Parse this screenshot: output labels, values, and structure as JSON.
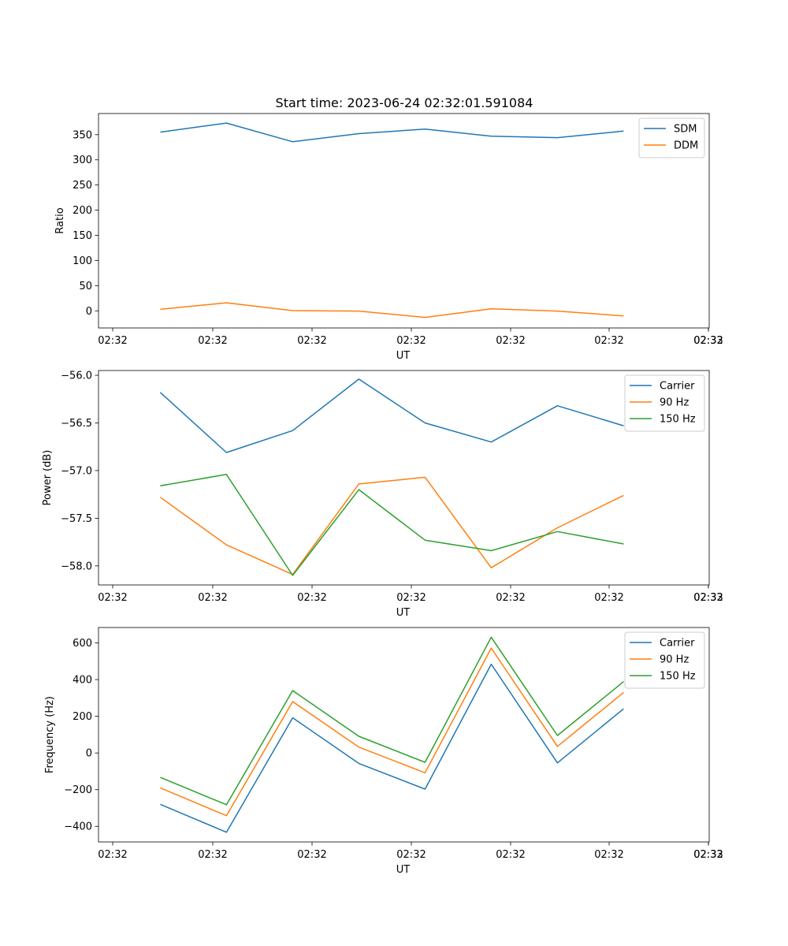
{
  "title": "Start time: 2023-06-24 02:32:01.591084",
  "colors": {
    "blue": "#1f77b4",
    "orange": "#ff7f0e",
    "green": "#2ca02c"
  },
  "chart_data": [
    {
      "type": "line",
      "title": "Start time: 2023-06-24 02:32:01.591084",
      "xlabel": "UT",
      "ylabel": "Ratio",
      "x": [
        "02:32:01.6",
        "02:32:02.6",
        "02:32:03.6",
        "02:32:04.6",
        "02:32:05.6",
        "02:32:06.6",
        "02:32:07.6",
        "02:32:08.6"
      ],
      "x_ticks": [
        "02:32",
        "02:32",
        "02:32",
        "02:32",
        "02:32",
        "02:32",
        "02:32",
        "02:33"
      ],
      "xlim": [
        "02:32:00.667",
        "02:32:09.893"
      ],
      "ylim": [
        -34,
        392
      ],
      "y_ticks": [
        0,
        50,
        100,
        150,
        200,
        250,
        300,
        350
      ],
      "legend_position": "top-right",
      "series": [
        {
          "name": "SDM",
          "color": "#1f77b4",
          "values": [
            355,
            373,
            336,
            352,
            361,
            347,
            344,
            357
          ]
        },
        {
          "name": "DDM",
          "color": "#ff7f0e",
          "values": [
            3,
            16,
            0.5,
            -0.5,
            -13,
            4,
            -0.5,
            -10
          ]
        }
      ]
    },
    {
      "type": "line",
      "xlabel": "UT",
      "ylabel": "Power (dB)",
      "x": [
        "02:32:01.6",
        "02:32:02.6",
        "02:32:03.6",
        "02:32:04.6",
        "02:32:05.6",
        "02:32:06.6",
        "02:32:07.6",
        "02:32:08.6"
      ],
      "x_ticks": [
        "02:32",
        "02:32",
        "02:32",
        "02:32",
        "02:32",
        "02:32",
        "02:32",
        "02:33"
      ],
      "xlim": [
        "02:32:00.667",
        "02:32:09.893"
      ],
      "ylim": [
        -58.2,
        -55.95
      ],
      "y_ticks": [
        -58.0,
        -57.5,
        -57.0,
        -56.5,
        -56.0
      ],
      "y_tick_labels": [
        "−58.0",
        "−57.5",
        "−57.0",
        "−56.5",
        "−56.0"
      ],
      "legend_position": "top-right",
      "series": [
        {
          "name": "Carrier",
          "color": "#1f77b4",
          "values": [
            -56.18,
            -56.81,
            -56.58,
            -56.04,
            -56.5,
            -56.7,
            -56.32,
            -56.53
          ]
        },
        {
          "name": "90 Hz",
          "color": "#ff7f0e",
          "values": [
            -57.28,
            -57.78,
            -58.09,
            -57.14,
            -57.07,
            -58.02,
            -57.6,
            -57.26
          ]
        },
        {
          "name": "150 Hz",
          "color": "#2ca02c",
          "values": [
            -57.16,
            -57.04,
            -58.1,
            -57.2,
            -57.73,
            -57.84,
            -57.64,
            -57.77
          ]
        }
      ]
    },
    {
      "type": "line",
      "xlabel": "UT",
      "ylabel": "Frequency (Hz)",
      "x": [
        "02:32:01.6",
        "02:32:02.6",
        "02:32:03.6",
        "02:32:04.6",
        "02:32:05.6",
        "02:32:06.6",
        "02:32:07.6",
        "02:32:08.6"
      ],
      "x_ticks": [
        "02:32",
        "02:32",
        "02:32",
        "02:32",
        "02:32",
        "02:32",
        "02:32",
        "02:33"
      ],
      "xlim": [
        "02:32:00.667",
        "02:32:09.893"
      ],
      "ylim": [
        -485,
        684
      ],
      "y_ticks": [
        -400,
        -200,
        0,
        200,
        400,
        600
      ],
      "y_tick_labels": [
        "−400",
        "−200",
        "0",
        "200",
        "400",
        "600"
      ],
      "legend_position": "top-right",
      "series": [
        {
          "name": "Carrier",
          "color": "#1f77b4",
          "values": [
            -280,
            -432,
            192,
            -57,
            -197,
            484,
            -54,
            241
          ]
        },
        {
          "name": "90 Hz",
          "color": "#ff7f0e",
          "values": [
            -190,
            -342,
            280,
            32,
            -108,
            572,
            36,
            330
          ]
        },
        {
          "name": "150 Hz",
          "color": "#2ca02c",
          "values": [
            -133,
            -282,
            340,
            91,
            -51,
            631,
            95,
            389
          ]
        }
      ]
    }
  ]
}
